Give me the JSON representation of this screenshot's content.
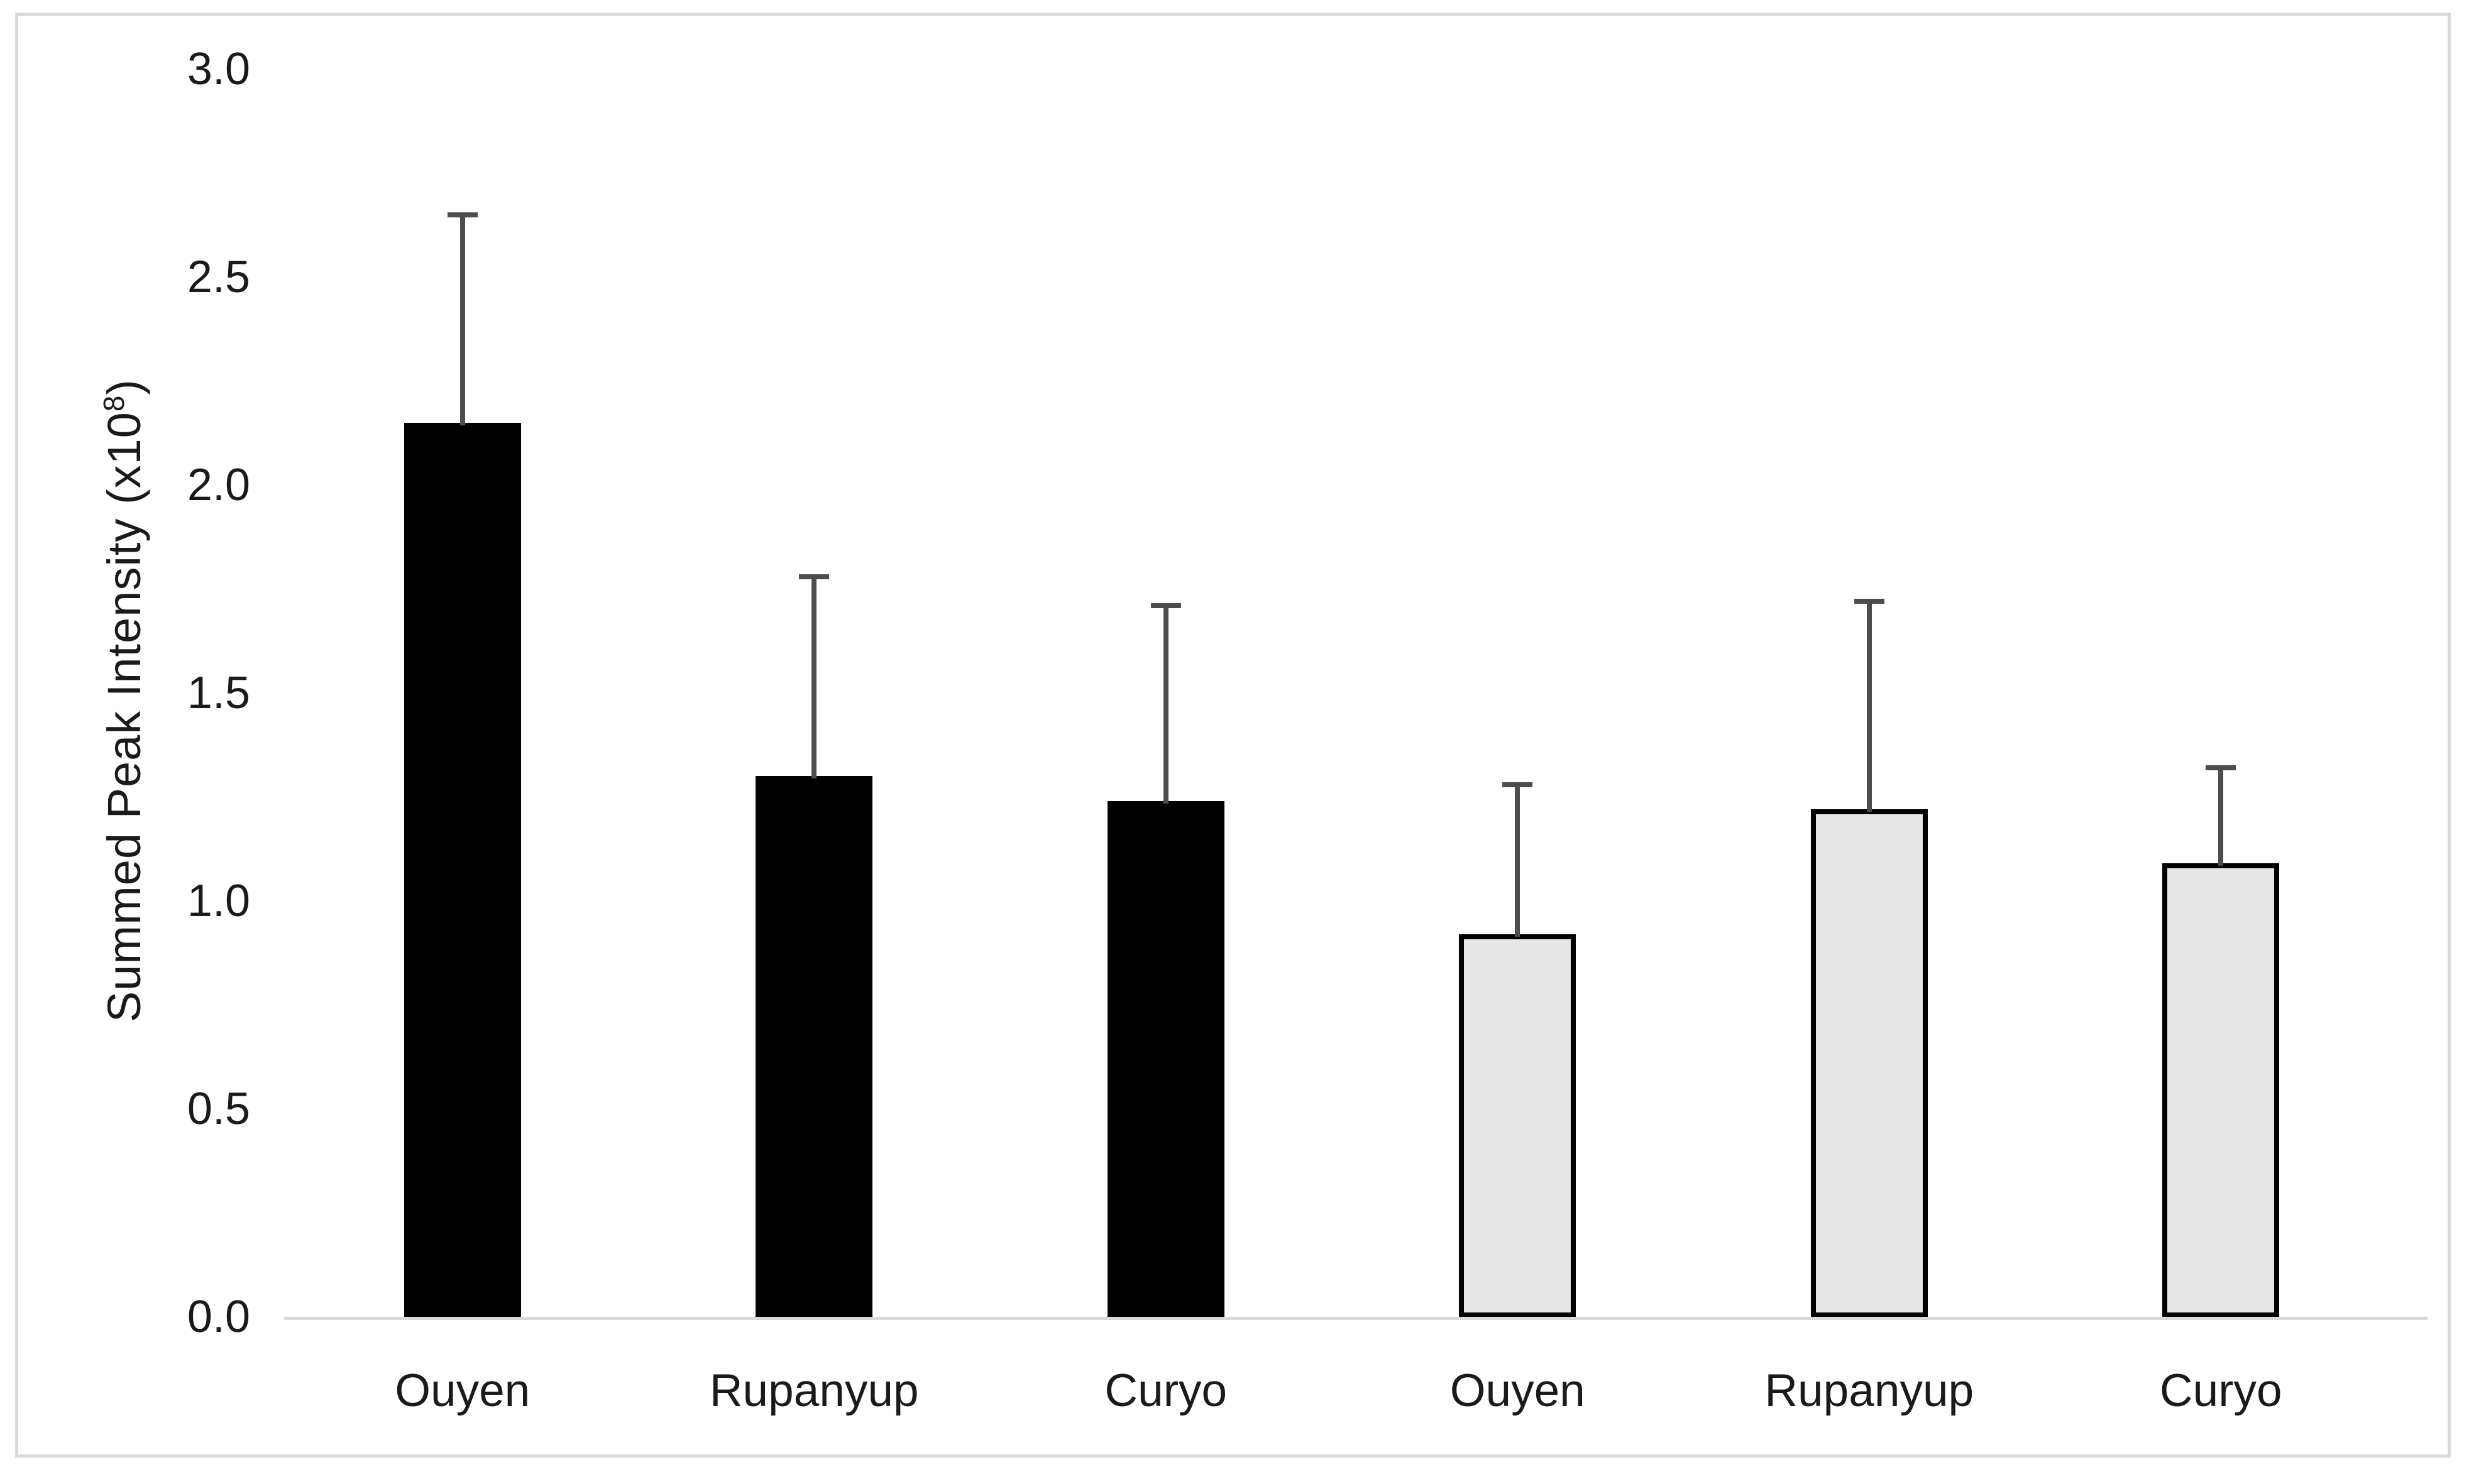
{
  "figure": {
    "background_color": "#ffffff",
    "frame_color": "#d9d9d9"
  },
  "chart_data": {
    "type": "bar",
    "title": "",
    "xlabel": "",
    "ylabel": "Summed Peak Intensity (x10⁸)",
    "ylabel_parts": {
      "prefix": "Summed Peak Intensity (x10",
      "superscript": "8",
      "suffix": ")"
    },
    "categories": [
      "Ouyen",
      "Rupanyup",
      "Curyo",
      "Ouyen",
      "Rupanyup",
      "Curyo"
    ],
    "bars": [
      {
        "label": "Ouyen",
        "value": 2.15,
        "error_plus": 0.5,
        "fill": "#000000",
        "border": "#000000",
        "group": "group-1"
      },
      {
        "label": "Rupanyup",
        "value": 1.3,
        "error_plus": 0.48,
        "fill": "#000000",
        "border": "#000000",
        "group": "group-1"
      },
      {
        "label": "Curyo",
        "value": 1.24,
        "error_plus": 0.47,
        "fill": "#000000",
        "border": "#000000",
        "group": "group-1"
      },
      {
        "label": "Ouyen",
        "value": 0.92,
        "error_plus": 0.36,
        "fill": "#e6e6e6",
        "border": "#000000",
        "group": "group-2"
      },
      {
        "label": "Rupanyup",
        "value": 1.22,
        "error_plus": 0.5,
        "fill": "#e6e6e6",
        "border": "#000000",
        "group": "group-2"
      },
      {
        "label": "Curyo",
        "value": 1.09,
        "error_plus": 0.23,
        "fill": "#e6e6e6",
        "border": "#000000",
        "group": "group-2"
      }
    ],
    "ylim": [
      0.0,
      3.0
    ],
    "yticks": [
      {
        "value": 3.0,
        "label": "3.0"
      },
      {
        "value": 2.5,
        "label": "2.5"
      },
      {
        "value": 2.0,
        "label": "2.0"
      },
      {
        "value": 1.5,
        "label": "1.5"
      },
      {
        "value": 1.0,
        "label": "1.0"
      },
      {
        "value": 0.5,
        "label": "0.5"
      },
      {
        "value": 0.0,
        "label": "0.0"
      }
    ],
    "grid": false,
    "legend_position": "none",
    "error_bar_color": "#4d4d4d",
    "axis_line_color": "#d9d9d9"
  }
}
